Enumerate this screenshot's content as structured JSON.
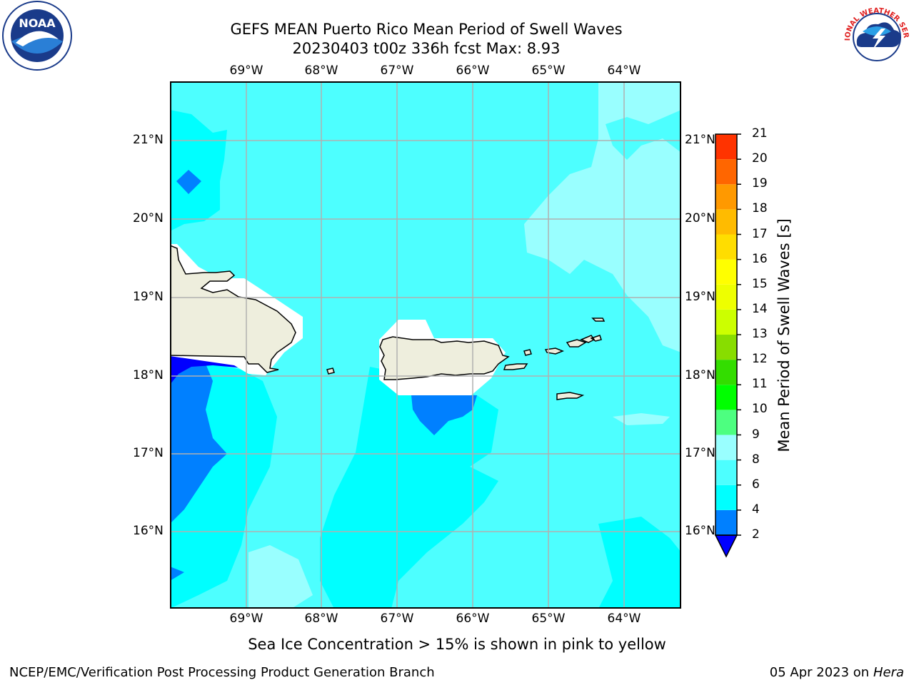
{
  "header": {
    "title_line1": "GEFS MEAN Puerto Rico Mean Period of Swell Waves",
    "title_line2": "20230403 t00z 336h fcst   Max: 8.93"
  },
  "logos": {
    "left": "noaa-logo",
    "left_text": "NOAA",
    "right": "nws-logo",
    "right_text": "NATIONAL WEATHER SERVICE"
  },
  "map": {
    "lon_labels": [
      "69°W",
      "68°W",
      "67°W",
      "66°W",
      "65°W",
      "64°W"
    ],
    "lat_labels": [
      "21°N",
      "20°N",
      "19°N",
      "18°N",
      "17°N",
      "16°N"
    ],
    "colors": {
      "land": "#eeeedd",
      "ocean_base": "#4dffff",
      "deep": "#0080ff",
      "deeper": "#0000ff",
      "mid": "#00ffff",
      "light": "#99ffff",
      "grid": "#b0b0b0"
    }
  },
  "colorbar": {
    "label": "Mean Period of Swell Waves [s]",
    "ticks": [
      "2",
      "4",
      "6",
      "8",
      "9",
      "10",
      "11",
      "12",
      "13",
      "14",
      "15",
      "16",
      "17",
      "18",
      "19",
      "20",
      "21"
    ],
    "colors": [
      "#0080ff",
      "#00ffff",
      "#4dffff",
      "#99ffff",
      "#4dff80",
      "#00ff00",
      "#33dd00",
      "#88dd00",
      "#ccff00",
      "#eeff00",
      "#ffff00",
      "#ffdd00",
      "#ffbb00",
      "#ff9900",
      "#ff6600",
      "#ff3300",
      "#ff0000"
    ],
    "extend_color": "#0000ff"
  },
  "footer": {
    "note": "Sea Ice Concentration > 15% is shown in pink to yellow",
    "left": "NCEP/EMC/Verification Post Processing Product Generation Branch",
    "date": "05 Apr 2023 on",
    "machine": "Hera"
  }
}
